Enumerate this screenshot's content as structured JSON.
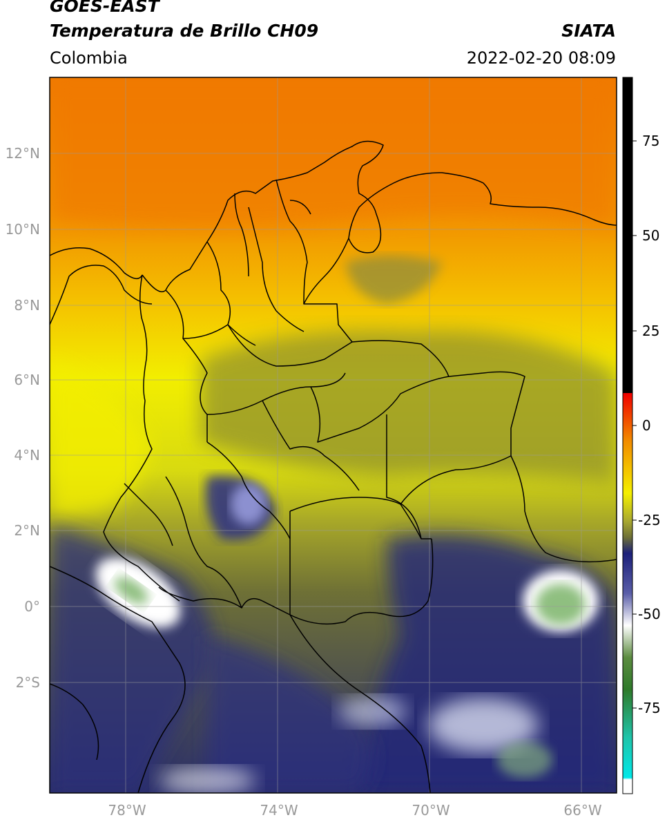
{
  "header": {
    "satellite": "GOES-EAST",
    "product": "Temperatura de Brillo CH09",
    "region": "Colombia",
    "org": "SIATA",
    "datetime": "2022-02-20 08:09"
  },
  "map": {
    "lon_labels": [
      "78°W",
      "74°W",
      "70°W",
      "66°W"
    ],
    "lat_labels": [
      "12°N",
      "10°N",
      "8°N",
      "6°N",
      "4°N",
      "2°N",
      "0°",
      "2°S"
    ],
    "gridlines": true
  },
  "colorbar": {
    "tick_labels": [
      "75",
      "50",
      "25",
      "0",
      "-25",
      "-50",
      "-75"
    ],
    "colors": {
      "black": "#000000",
      "red": "#e8200e",
      "orange": "#f08a00",
      "yellow": "#f5f000",
      "olive": "#6e7036",
      "navy": "#1c207a",
      "white": "#ffffff",
      "green": "#3c8a28",
      "teal": "#1fc4aa",
      "cyan": "#00e8e8"
    }
  }
}
